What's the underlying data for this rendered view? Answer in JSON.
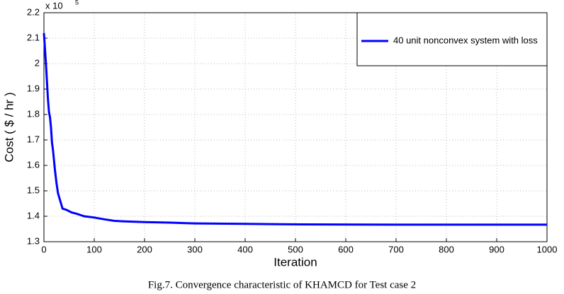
{
  "chart_data": {
    "type": "line",
    "caption": "Fig.7. Convergence characteristic of KHAMCD for Test case 2",
    "xlabel": "Iteration",
    "ylabel": "Cost ( $ / hr )",
    "y_scale_base": "x 10",
    "y_scale_exponent": "5",
    "x": [
      0,
      2,
      4,
      6,
      8,
      10,
      12,
      14,
      16,
      18,
      20,
      22,
      25,
      28,
      31,
      34,
      37,
      45,
      55,
      65,
      80,
      100,
      120,
      140,
      160,
      200,
      250,
      300,
      400,
      510,
      700,
      1000
    ],
    "series": [
      {
        "name": "40 unit nonconvex system with loss",
        "color": "#0000ff",
        "values": [
          2.12,
          2.06,
          2.0,
          1.93,
          1.86,
          1.81,
          1.79,
          1.75,
          1.69,
          1.66,
          1.62,
          1.58,
          1.53,
          1.49,
          1.47,
          1.45,
          1.43,
          1.425,
          1.415,
          1.41,
          1.4,
          1.395,
          1.388,
          1.382,
          1.38,
          1.377,
          1.375,
          1.372,
          1.37,
          1.368,
          1.367,
          1.367
        ]
      }
    ],
    "xlim": [
      0,
      1000
    ],
    "xticks": [
      0,
      100,
      200,
      300,
      400,
      500,
      600,
      700,
      800,
      900,
      1000
    ],
    "ylim": [
      1.3,
      2.2
    ],
    "yticks": [
      1.3,
      1.4,
      1.5,
      1.6,
      1.7,
      1.8,
      1.9,
      2,
      2.1,
      2.2
    ],
    "grid": true,
    "legend": "northeast"
  }
}
